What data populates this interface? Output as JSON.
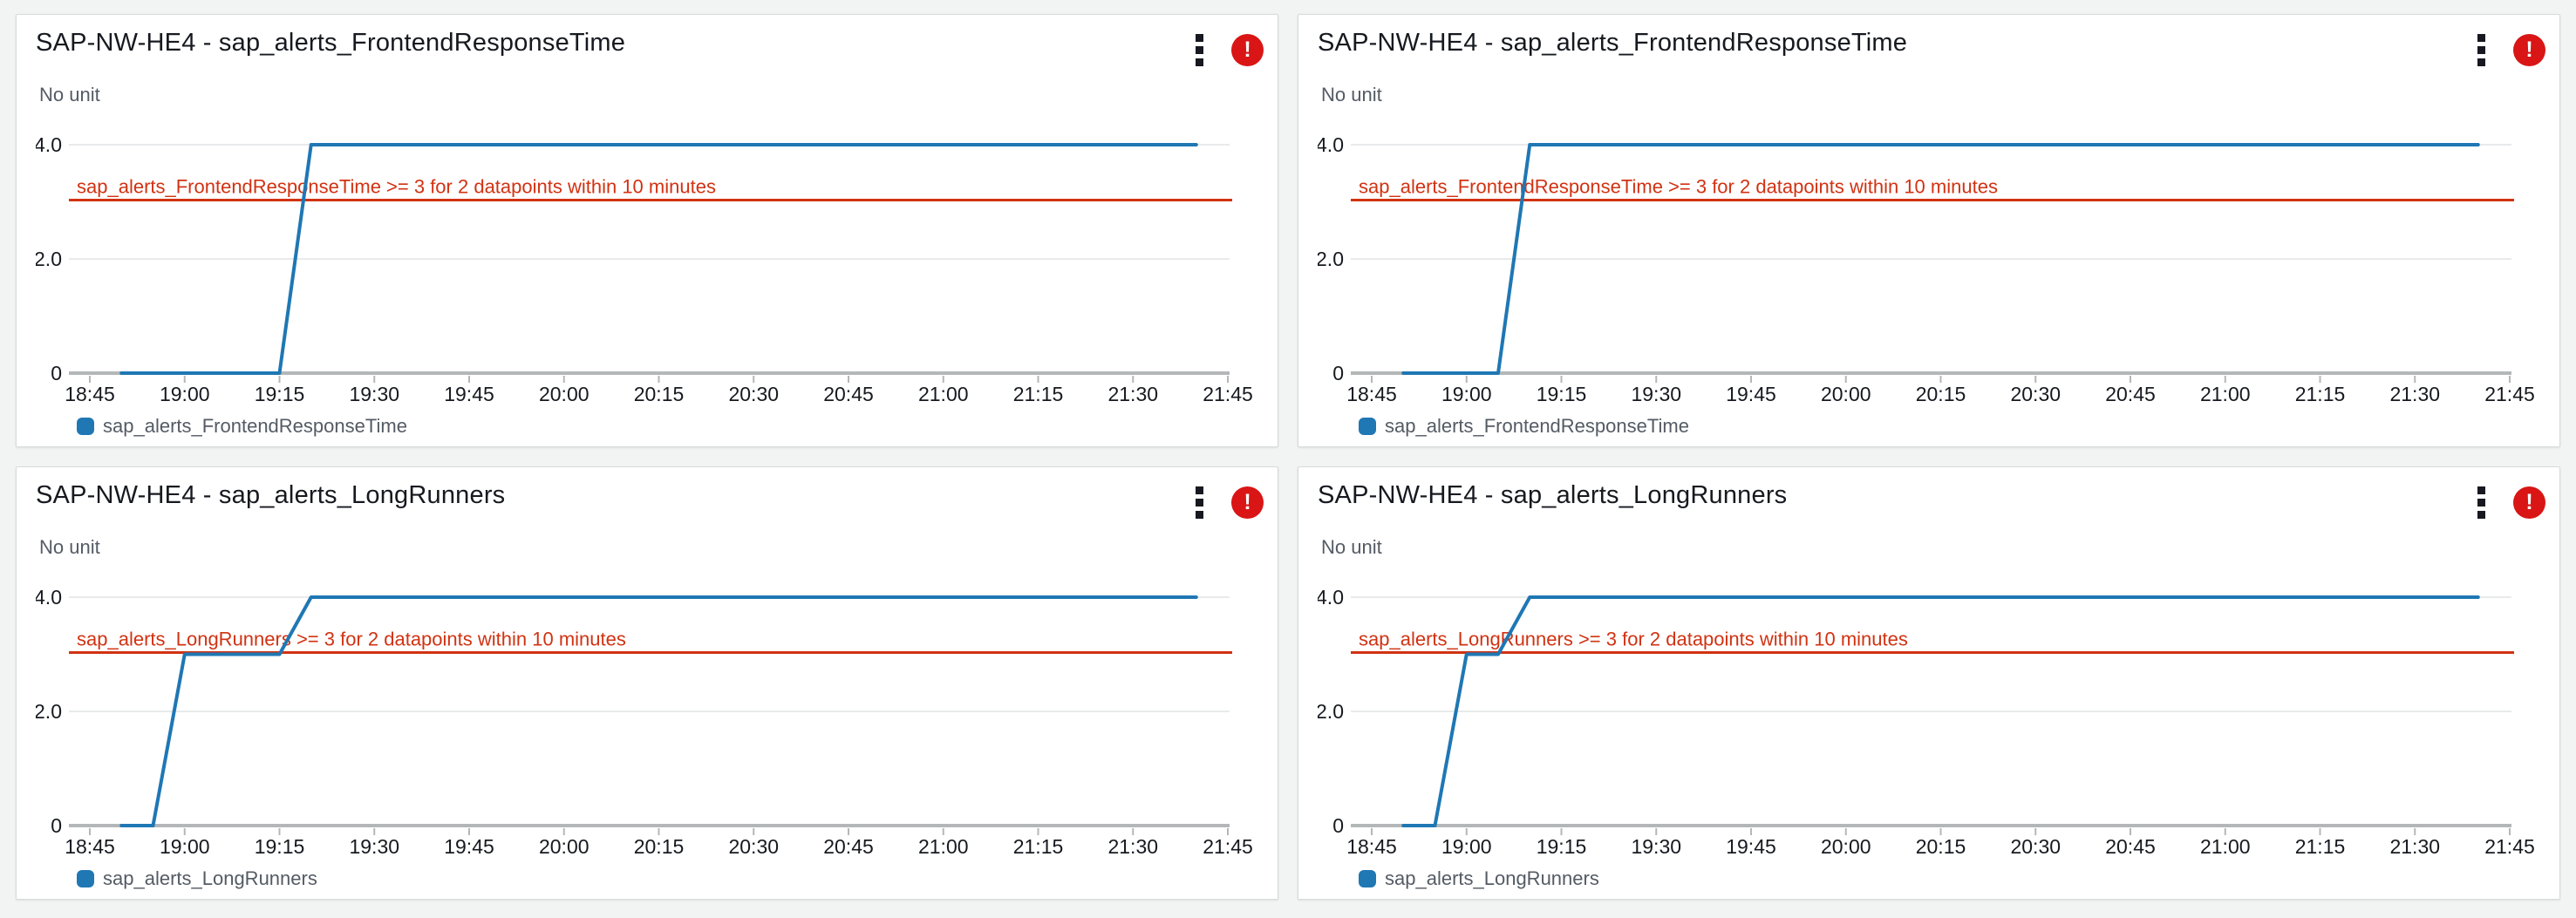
{
  "colors": {
    "page_bg": "#f2f3f3",
    "panel_bg": "#ffffff",
    "panel_border": "#d5dbdb",
    "title_text": "#16191f",
    "axis_text": "#16191f",
    "muted_text": "#545b64",
    "gridline": "#e8eaeb",
    "axis_line": "#b4b7b8",
    "series_blue": "#1f77b4",
    "threshold_red": "#d13212",
    "alarm_badge_red": "#d91515"
  },
  "icons": {
    "menu_icon": "vertical-ellipsis",
    "alarm_icon": "!"
  },
  "axis": {
    "unit_label": "No unit",
    "y_ticks": [
      {
        "label": "4.0",
        "value": 4
      },
      {
        "label": "2.0",
        "value": 2
      },
      {
        "label": "0",
        "value": 0
      }
    ],
    "x_ticks": [
      "18:45",
      "19:00",
      "19:15",
      "19:30",
      "19:45",
      "20:00",
      "20:15",
      "20:30",
      "20:45",
      "21:00",
      "21:15",
      "21:30",
      "21:45"
    ],
    "xlim": [
      "18:42",
      "21:45"
    ],
    "ylim": [
      0,
      4.6
    ]
  },
  "chart_data": [
    {
      "type": "line",
      "title": "SAP-NW-HE4 - sap_alerts_FrontendResponseTime",
      "ylabel": "No unit",
      "legend": "sap_alerts_FrontendResponseTime",
      "legend_position": "bottom-left",
      "grid": true,
      "x_ticks": [
        "18:45",
        "19:00",
        "19:15",
        "19:30",
        "19:45",
        "20:00",
        "20:15",
        "20:30",
        "20:45",
        "21:00",
        "21:15",
        "21:30",
        "21:45"
      ],
      "ylim": [
        0,
        4.6
      ],
      "threshold": {
        "value": 3,
        "label": "sap_alerts_FrontendResponseTime >= 3 for 2 datapoints within 10 minutes"
      },
      "series": [
        {
          "name": "sap_alerts_FrontendResponseTime",
          "points": [
            [
              "18:50",
              0
            ],
            [
              "19:15",
              0
            ],
            [
              "19:20",
              4
            ],
            [
              "21:40",
              4
            ]
          ]
        }
      ]
    },
    {
      "type": "line",
      "title": "SAP-NW-HE4 - sap_alerts_FrontendResponseTime",
      "ylabel": "No unit",
      "legend": "sap_alerts_FrontendResponseTime",
      "legend_position": "bottom-left",
      "grid": true,
      "x_ticks": [
        "18:45",
        "19:00",
        "19:15",
        "19:30",
        "19:45",
        "20:00",
        "20:15",
        "20:30",
        "20:45",
        "21:00",
        "21:15",
        "21:30",
        "21:45"
      ],
      "ylim": [
        0,
        4.6
      ],
      "threshold": {
        "value": 3,
        "label": "sap_alerts_FrontendResponseTime >= 3 for 2 datapoints within 10 minutes"
      },
      "series": [
        {
          "name": "sap_alerts_FrontendResponseTime",
          "points": [
            [
              "18:50",
              0
            ],
            [
              "19:05",
              0
            ],
            [
              "19:10",
              4
            ],
            [
              "21:40",
              4
            ]
          ]
        }
      ]
    },
    {
      "type": "line",
      "title": "SAP-NW-HE4 - sap_alerts_LongRunners",
      "ylabel": "No unit",
      "legend": "sap_alerts_LongRunners",
      "legend_position": "bottom-left",
      "grid": true,
      "x_ticks": [
        "18:45",
        "19:00",
        "19:15",
        "19:30",
        "19:45",
        "20:00",
        "20:15",
        "20:30",
        "20:45",
        "21:00",
        "21:15",
        "21:30",
        "21:45"
      ],
      "ylim": [
        0,
        4.6
      ],
      "threshold": {
        "value": 3,
        "label": "sap_alerts_LongRunners >= 3 for 2 datapoints within 10 minutes"
      },
      "series": [
        {
          "name": "sap_alerts_LongRunners",
          "points": [
            [
              "18:50",
              0
            ],
            [
              "18:55",
              0
            ],
            [
              "19:00",
              3
            ],
            [
              "19:15",
              3
            ],
            [
              "19:20",
              4
            ],
            [
              "21:40",
              4
            ]
          ]
        }
      ]
    },
    {
      "type": "line",
      "title": "SAP-NW-HE4 - sap_alerts_LongRunners",
      "ylabel": "No unit",
      "legend": "sap_alerts_LongRunners",
      "legend_position": "bottom-left",
      "grid": true,
      "x_ticks": [
        "18:45",
        "19:00",
        "19:15",
        "19:30",
        "19:45",
        "20:00",
        "20:15",
        "20:30",
        "20:45",
        "21:00",
        "21:15",
        "21:30",
        "21:45"
      ],
      "ylim": [
        0,
        4.6
      ],
      "threshold": {
        "value": 3,
        "label": "sap_alerts_LongRunners >= 3 for 2 datapoints within 10 minutes"
      },
      "series": [
        {
          "name": "sap_alerts_LongRunners",
          "points": [
            [
              "18:50",
              0
            ],
            [
              "18:55",
              0
            ],
            [
              "19:00",
              3
            ],
            [
              "19:05",
              3
            ],
            [
              "19:10",
              4
            ],
            [
              "21:40",
              4
            ]
          ]
        }
      ]
    }
  ]
}
